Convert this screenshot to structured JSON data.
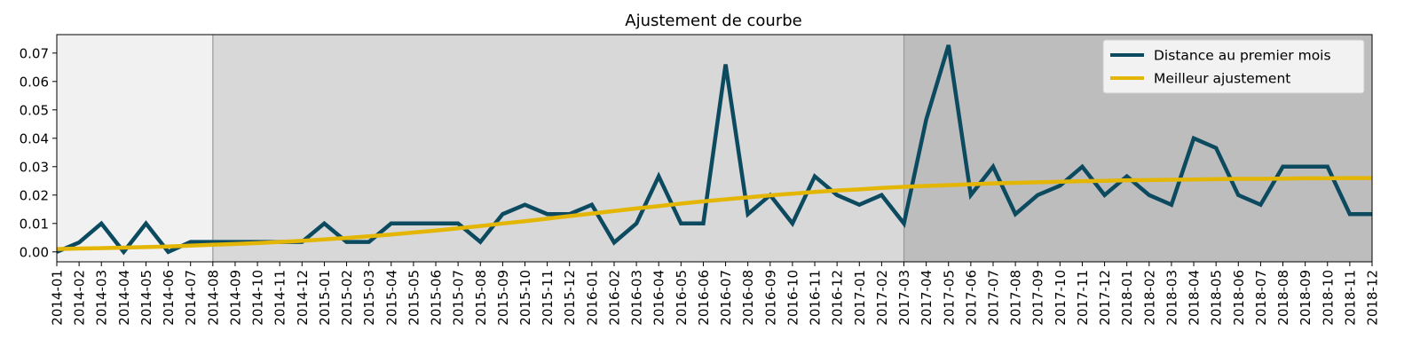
{
  "chart_data": {
    "type": "line",
    "title": "Ajustement de courbe",
    "xlabel": "",
    "ylabel": "",
    "categories": [
      "2014-01",
      "2014-02",
      "2014-03",
      "2014-04",
      "2014-05",
      "2014-06",
      "2014-07",
      "2014-08",
      "2014-09",
      "2014-10",
      "2014-11",
      "2014-12",
      "2015-01",
      "2015-02",
      "2015-03",
      "2015-04",
      "2015-05",
      "2015-06",
      "2015-07",
      "2015-08",
      "2015-09",
      "2015-10",
      "2015-11",
      "2015-12",
      "2016-01",
      "2016-02",
      "2016-03",
      "2016-04",
      "2016-05",
      "2016-06",
      "2016-07",
      "2016-08",
      "2016-09",
      "2016-10",
      "2016-11",
      "2016-12",
      "2017-01",
      "2017-02",
      "2017-03",
      "2017-04",
      "2017-05",
      "2017-06",
      "2017-07",
      "2017-08",
      "2017-09",
      "2017-10",
      "2017-11",
      "2017-12",
      "2018-01",
      "2018-02",
      "2018-03",
      "2018-04",
      "2018-05",
      "2018-06",
      "2018-07",
      "2018-08",
      "2018-09",
      "2018-10",
      "2018-11",
      "2018-12"
    ],
    "ylim": [
      -0.0035,
      0.0765
    ],
    "yticks": [
      0.0,
      0.01,
      0.02,
      0.03,
      0.04,
      0.05,
      0.06,
      0.07
    ],
    "ytick_labels": [
      "0.00",
      "0.01",
      "0.02",
      "0.03",
      "0.04",
      "0.05",
      "0.06",
      "0.07"
    ],
    "grid": false,
    "legend_position": "top-right",
    "shaded_periods": [
      {
        "from": "2014-01",
        "to": "2014-08",
        "color": "#f1f1f1"
      },
      {
        "from": "2014-08",
        "to": "2017-03",
        "color": "#d8d8d8"
      },
      {
        "from": "2017-03",
        "to": "2018-12",
        "color": "#bdbdbd"
      }
    ],
    "series": [
      {
        "name": "Distance au premier mois",
        "color": "#0c4a60",
        "values": [
          0.0,
          0.0033,
          0.01,
          0.0,
          0.01,
          0.0,
          0.0035,
          0.0035,
          0.0035,
          0.0035,
          0.0035,
          0.0035,
          0.01,
          0.0035,
          0.0035,
          0.01,
          0.01,
          0.01,
          0.01,
          0.0035,
          0.0133,
          0.0166,
          0.0133,
          0.0133,
          0.0166,
          0.0033,
          0.01,
          0.0266,
          0.01,
          0.01,
          0.066,
          0.0133,
          0.02,
          0.01,
          0.0266,
          0.02,
          0.0166,
          0.02,
          0.01,
          0.0466,
          0.0728,
          0.02,
          0.03,
          0.0133,
          0.02,
          0.0233,
          0.03,
          0.02,
          0.0266,
          0.02,
          0.0166,
          0.04,
          0.0366,
          0.02,
          0.0166,
          0.03,
          0.03,
          0.03,
          0.0133,
          0.0133
        ]
      },
      {
        "name": "Meilleur ajustement",
        "color": "#e3b505",
        "values": [
          0.001,
          0.0012,
          0.0013,
          0.0015,
          0.0017,
          0.0019,
          0.0022,
          0.0025,
          0.0028,
          0.0031,
          0.0035,
          0.0039,
          0.0044,
          0.0049,
          0.0055,
          0.0061,
          0.0068,
          0.0075,
          0.0083,
          0.0091,
          0.01,
          0.0108,
          0.0117,
          0.0126,
          0.0135,
          0.0144,
          0.0153,
          0.0161,
          0.017,
          0.0178,
          0.0185,
          0.0192,
          0.0199,
          0.0205,
          0.0211,
          0.0216,
          0.022,
          0.0225,
          0.0229,
          0.0232,
          0.0235,
          0.0238,
          0.0241,
          0.0243,
          0.0245,
          0.0247,
          0.0249,
          0.025,
          0.0252,
          0.0253,
          0.0254,
          0.0255,
          0.0256,
          0.0257,
          0.0257,
          0.0258,
          0.0259,
          0.0259,
          0.026,
          0.026
        ]
      }
    ]
  }
}
